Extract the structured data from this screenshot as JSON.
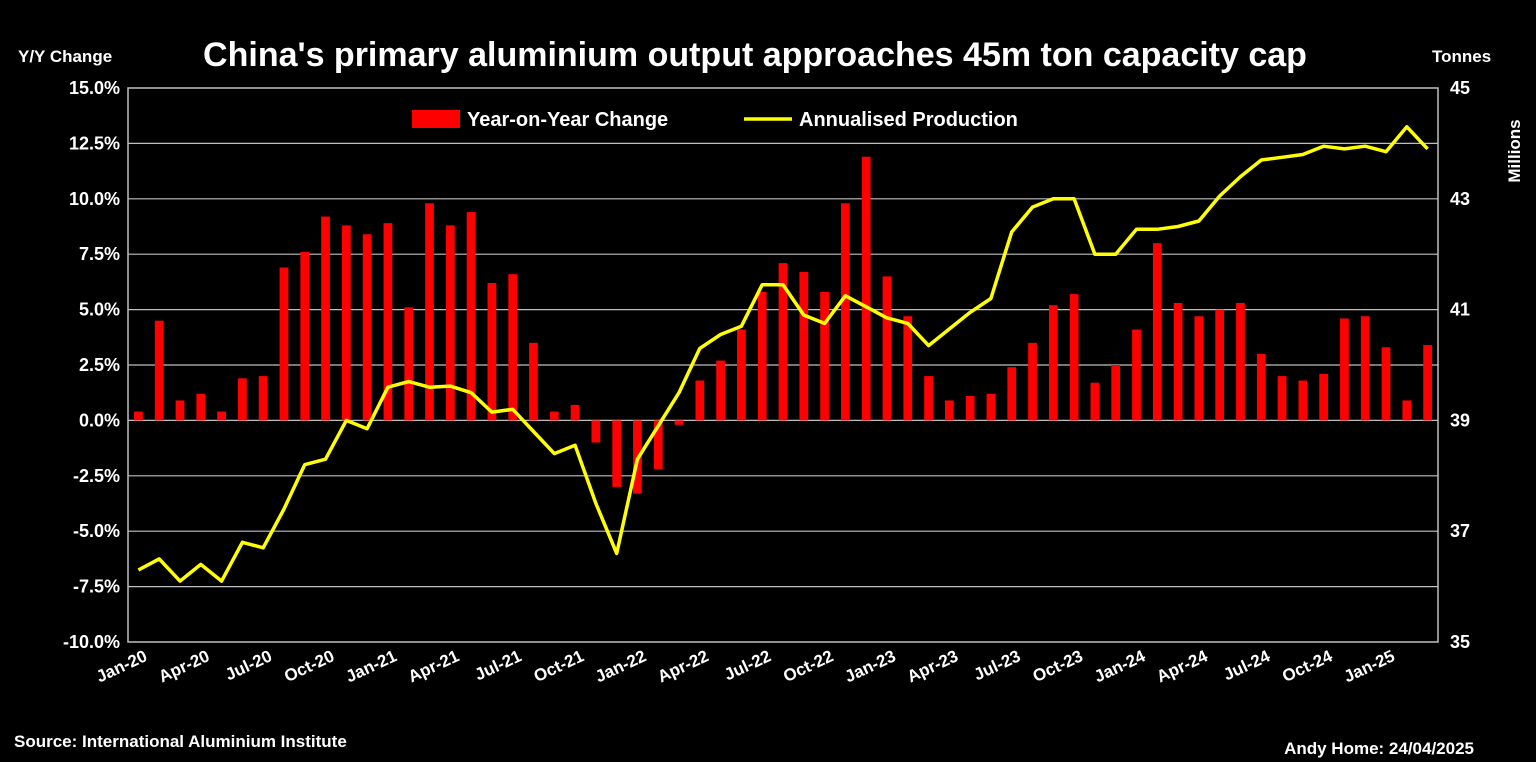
{
  "chart_data": {
    "type": "bar+line",
    "title": "China's primary aluminium output approaches 45m ton capacity cap",
    "left_axis_label": "Y/Y Change",
    "right_axis_label": "Tonnes",
    "right_axis_unit": "Millions",
    "source": "Source: International Aluminium Institute",
    "credit": "Andy Home: 24/04/2025",
    "left_ylim": [
      -10.0,
      15.0
    ],
    "right_ylim": [
      35,
      45
    ],
    "left_ticks": [
      "15.0%",
      "12.5%",
      "10.0%",
      "7.5%",
      "5.0%",
      "2.5%",
      "0.0%",
      "-2.5%",
      "-5.0%",
      "-7.5%",
      "-10.0%"
    ],
    "right_ticks": [
      "45",
      "43",
      "41",
      "39",
      "37",
      "35"
    ],
    "x_tick_labels": [
      "Jan-20",
      "Apr-20",
      "Jul-20",
      "Oct-20",
      "Jan-21",
      "Apr-21",
      "Jul-21",
      "Oct-21",
      "Jan-22",
      "Apr-22",
      "Jul-22",
      "Oct-22",
      "Jan-23",
      "Apr-23",
      "Jul-23",
      "Oct-23",
      "Jan-24",
      "Apr-24",
      "Jul-24",
      "Oct-24",
      "Jan-25"
    ],
    "grid": true,
    "legend_position": "top",
    "series": [
      {
        "name": "Year-on-Year Change",
        "type": "bar",
        "axis": "left",
        "color": "#ff0000",
        "values": [
          0.4,
          4.5,
          0.9,
          1.2,
          0.4,
          1.9,
          2.0,
          6.9,
          7.6,
          9.2,
          8.8,
          8.4,
          8.9,
          5.1,
          9.8,
          8.8,
          9.4,
          6.2,
          6.6,
          3.5,
          0.4,
          0.7,
          -1.0,
          -3.0,
          -3.3,
          -2.2,
          -0.2,
          1.8,
          2.7,
          4.1,
          5.8,
          7.1,
          6.7,
          5.8,
          9.8,
          11.9,
          6.5,
          4.7,
          2.0,
          0.9,
          1.1,
          1.2,
          2.4,
          3.5,
          5.2,
          5.7,
          1.7,
          2.5,
          4.1,
          8.0,
          5.3,
          4.7,
          5.0,
          5.3,
          3.0,
          2.0,
          1.8,
          2.1,
          4.6,
          4.7,
          3.3,
          0.9,
          3.4
        ]
      },
      {
        "name": "Annualised Production",
        "type": "line",
        "axis": "right",
        "color": "#ffff00",
        "values": [
          36.3,
          36.5,
          36.1,
          36.4,
          36.1,
          36.8,
          36.7,
          37.4,
          38.2,
          38.3,
          39.0,
          38.85,
          39.6,
          39.7,
          39.6,
          39.62,
          39.5,
          39.15,
          39.2,
          38.8,
          38.4,
          38.55,
          37.5,
          36.6,
          38.3,
          38.9,
          39.5,
          40.3,
          40.55,
          40.7,
          41.45,
          41.45,
          40.9,
          40.75,
          41.25,
          41.05,
          40.85,
          40.75,
          40.35,
          40.65,
          40.95,
          41.2,
          42.4,
          42.85,
          43.0,
          43.0,
          42.0,
          42.0,
          42.45,
          42.45,
          42.5,
          42.6,
          43.05,
          43.4,
          43.7,
          43.75,
          43.8,
          43.95,
          43.9,
          43.95,
          43.85,
          44.3,
          43.9
        ]
      }
    ]
  }
}
